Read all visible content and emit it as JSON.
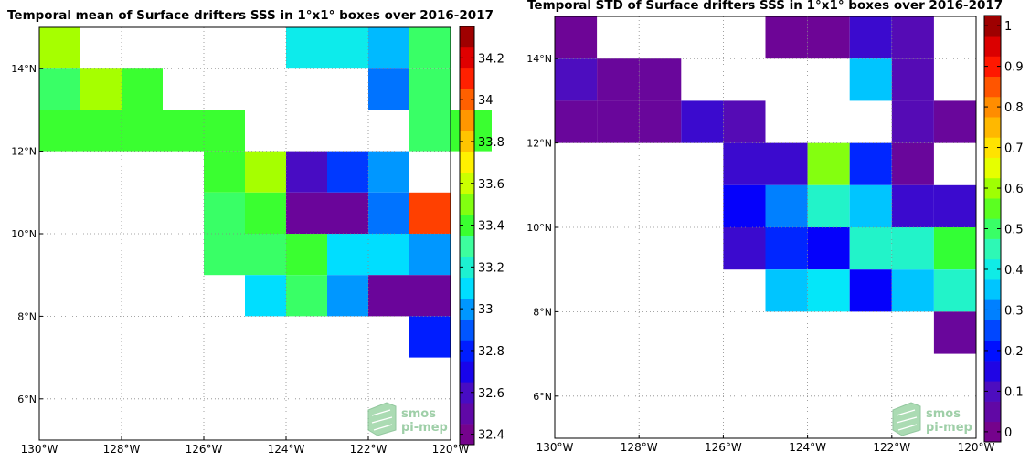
{
  "chart_data": [
    {
      "type": "heatmap",
      "title": "Temporal mean of Surface drifters SSS in 1°x1° boxes over 2016-2017",
      "x_ticks": [
        "130°W",
        "128°W",
        "126°W",
        "124°W",
        "122°W",
        "120°W"
      ],
      "y_ticks": [
        "6°N",
        "8°N",
        "10°N",
        "12°N",
        "14°N"
      ],
      "xlim": [
        -130,
        -120
      ],
      "ylim": [
        5,
        15
      ],
      "grid": true,
      "colorbar": {
        "min": 32.35,
        "max": 34.35,
        "ticks": [
          "32.4",
          "32.6",
          "32.8",
          "33",
          "33.2",
          "33.4",
          "33.6",
          "33.8",
          "34",
          "34.2"
        ],
        "tick_values": [
          32.4,
          32.6,
          32.8,
          33.0,
          33.2,
          33.4,
          33.6,
          33.8,
          34.0,
          34.2
        ]
      },
      "logo": [
        "smos",
        "pi-mep"
      ],
      "cells": [
        {
          "lon": -130,
          "lat": 14,
          "value": 33.55
        },
        {
          "lon": -124,
          "lat": 14,
          "value": 33.15
        },
        {
          "lon": -123,
          "lat": 14,
          "value": 33.15
        },
        {
          "lon": -122,
          "lat": 14,
          "value": 33.05
        },
        {
          "lon": -121,
          "lat": 14,
          "value": 33.35
        },
        {
          "lon": -130,
          "lat": 13,
          "value": 33.35
        },
        {
          "lon": -129,
          "lat": 13,
          "value": 33.55
        },
        {
          "lon": -128,
          "lat": 13,
          "value": 33.4
        },
        {
          "lon": -122,
          "lat": 13,
          "value": 32.95
        },
        {
          "lon": -121,
          "lat": 13,
          "value": 33.35
        },
        {
          "lon": -130,
          "lat": 12,
          "value": 33.4
        },
        {
          "lon": -129,
          "lat": 12,
          "value": 33.4
        },
        {
          "lon": -128,
          "lat": 12,
          "value": 33.4
        },
        {
          "lon": -127,
          "lat": 12,
          "value": 33.4
        },
        {
          "lon": -126,
          "lat": 12,
          "value": 33.4
        },
        {
          "lon": -121,
          "lat": 12,
          "value": 33.35
        },
        {
          "lon": -120,
          "lat": 12,
          "value": 33.4
        },
        {
          "lon": -126,
          "lat": 11,
          "value": 33.4
        },
        {
          "lon": -125,
          "lat": 11,
          "value": 33.55
        },
        {
          "lon": -124,
          "lat": 11,
          "value": 32.6
        },
        {
          "lon": -123,
          "lat": 11,
          "value": 32.85
        },
        {
          "lon": -122,
          "lat": 11,
          "value": 33.0
        },
        {
          "lon": -126,
          "lat": 10,
          "value": 33.35
        },
        {
          "lon": -125,
          "lat": 10,
          "value": 33.4
        },
        {
          "lon": -124,
          "lat": 10,
          "value": 32.45
        },
        {
          "lon": -123,
          "lat": 10,
          "value": 32.45
        },
        {
          "lon": -122,
          "lat": 10,
          "value": 32.95
        },
        {
          "lon": -121,
          "lat": 10,
          "value": 34.05
        },
        {
          "lon": -126,
          "lat": 9,
          "value": 33.35
        },
        {
          "lon": -125,
          "lat": 9,
          "value": 33.35
        },
        {
          "lon": -124,
          "lat": 9,
          "value": 33.4
        },
        {
          "lon": -123,
          "lat": 9,
          "value": 33.1
        },
        {
          "lon": -122,
          "lat": 9,
          "value": 33.1
        },
        {
          "lon": -121,
          "lat": 9,
          "value": 33.0
        },
        {
          "lon": -125,
          "lat": 8,
          "value": 33.1
        },
        {
          "lon": -124,
          "lat": 8,
          "value": 33.35
        },
        {
          "lon": -123,
          "lat": 8,
          "value": 33.0
        },
        {
          "lon": -122,
          "lat": 8,
          "value": 32.45
        },
        {
          "lon": -121,
          "lat": 8,
          "value": 32.45
        },
        {
          "lon": -121,
          "lat": 7,
          "value": 32.8
        }
      ]
    },
    {
      "type": "heatmap",
      "title": "Temporal STD of Surface drifters SSS in 1°x1° boxes over 2016-2017",
      "x_ticks": [
        "130°W",
        "128°W",
        "126°W",
        "124°W",
        "122°W",
        "120°W"
      ],
      "y_ticks": [
        "6°N",
        "8°N",
        "10°N",
        "12°N",
        "14°N"
      ],
      "xlim": [
        -130,
        -120
      ],
      "ylim": [
        5,
        15
      ],
      "grid": true,
      "colorbar": {
        "min": -0.025,
        "max": 1.025,
        "ticks": [
          "0",
          "0.1",
          "0.2",
          "0.3",
          "0.4",
          "0.5",
          "0.6",
          "0.7",
          "0.8",
          "0.9",
          "1"
        ],
        "tick_values": [
          0,
          0.1,
          0.2,
          0.3,
          0.4,
          0.5,
          0.6,
          0.7,
          0.8,
          0.9,
          1.0
        ]
      },
      "logo": [
        "smos",
        "pi-mep"
      ],
      "cells": [
        {
          "lon": -130,
          "lat": 14,
          "value": 0.02
        },
        {
          "lon": -125,
          "lat": 14,
          "value": 0.02
        },
        {
          "lon": -124,
          "lat": 14,
          "value": 0.02
        },
        {
          "lon": -123,
          "lat": 14,
          "value": 0.12
        },
        {
          "lon": -122,
          "lat": 14,
          "value": 0.08
        },
        {
          "lon": -130,
          "lat": 13,
          "value": 0.1
        },
        {
          "lon": -129,
          "lat": 13,
          "value": 0.03
        },
        {
          "lon": -128,
          "lat": 13,
          "value": 0.03
        },
        {
          "lon": -123,
          "lat": 13,
          "value": 0.35
        },
        {
          "lon": -122,
          "lat": 13,
          "value": 0.08
        },
        {
          "lon": -130,
          "lat": 12,
          "value": 0.03
        },
        {
          "lon": -129,
          "lat": 12,
          "value": 0.03
        },
        {
          "lon": -128,
          "lat": 12,
          "value": 0.03
        },
        {
          "lon": -127,
          "lat": 12,
          "value": 0.12
        },
        {
          "lon": -126,
          "lat": 12,
          "value": 0.08
        },
        {
          "lon": -122,
          "lat": 12,
          "value": 0.08
        },
        {
          "lon": -121,
          "lat": 12,
          "value": 0.03
        },
        {
          "lon": -126,
          "lat": 11,
          "value": 0.12
        },
        {
          "lon": -125,
          "lat": 11,
          "value": 0.12
        },
        {
          "lon": -124,
          "lat": 11,
          "value": 0.58
        },
        {
          "lon": -123,
          "lat": 11,
          "value": 0.22
        },
        {
          "lon": -122,
          "lat": 11,
          "value": 0.03
        },
        {
          "lon": -126,
          "lat": 10,
          "value": 0.18
        },
        {
          "lon": -125,
          "lat": 10,
          "value": 0.3
        },
        {
          "lon": -124,
          "lat": 10,
          "value": 0.43
        },
        {
          "lon": -123,
          "lat": 10,
          "value": 0.35
        },
        {
          "lon": -122,
          "lat": 10,
          "value": 0.12
        },
        {
          "lon": -121,
          "lat": 10,
          "value": 0.12
        },
        {
          "lon": -126,
          "lat": 9,
          "value": 0.12
        },
        {
          "lon": -125,
          "lat": 9,
          "value": 0.22
        },
        {
          "lon": -124,
          "lat": 9,
          "value": 0.18
        },
        {
          "lon": -123,
          "lat": 9,
          "value": 0.43
        },
        {
          "lon": -122,
          "lat": 9,
          "value": 0.43
        },
        {
          "lon": -121,
          "lat": 9,
          "value": 0.52
        },
        {
          "lon": -125,
          "lat": 8,
          "value": 0.35
        },
        {
          "lon": -124,
          "lat": 8,
          "value": 0.38
        },
        {
          "lon": -123,
          "lat": 8,
          "value": 0.18
        },
        {
          "lon": -122,
          "lat": 8,
          "value": 0.35
        },
        {
          "lon": -121,
          "lat": 8,
          "value": 0.43
        },
        {
          "lon": -121,
          "lat": 7,
          "value": 0.03
        }
      ]
    }
  ]
}
